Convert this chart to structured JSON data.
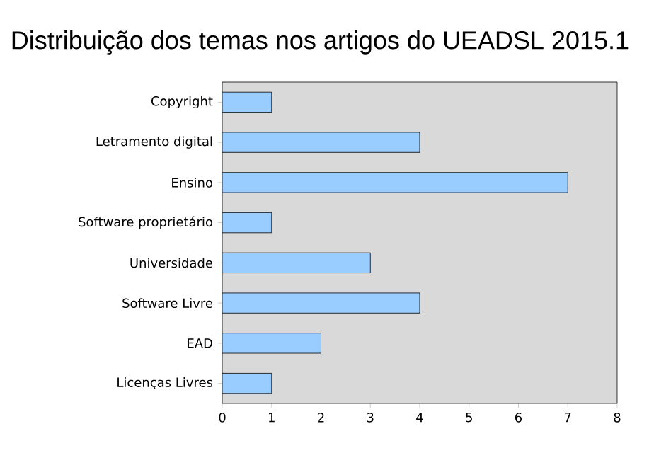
{
  "chart_data": {
    "type": "bar",
    "orientation": "horizontal",
    "title": "Distribuição dos temas nos artigos do UEADSL 2015.1",
    "categories": [
      "Copyright",
      "Letramento digital",
      "Ensino",
      "Software proprietário",
      "Universidade",
      "Software Livre",
      "EAD",
      "Licenças Livres"
    ],
    "values": [
      1,
      4,
      7,
      1,
      3,
      4,
      2,
      1
    ],
    "color": "#99ccff",
    "xlim": [
      0,
      8
    ],
    "xticks": [
      0,
      1,
      2,
      3,
      4,
      5,
      6,
      7,
      8
    ],
    "grid": false
  }
}
